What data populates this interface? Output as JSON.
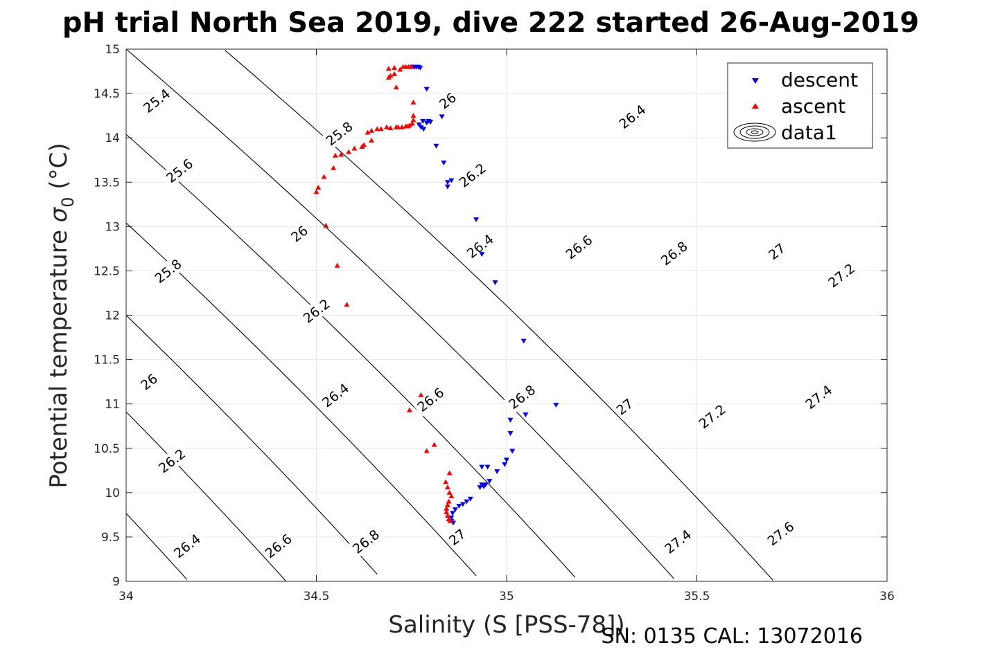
{
  "chart_data": {
    "type": "scatter",
    "title": "pH trial North Sea 2019, dive 222 started 26-Aug-2019",
    "xlabel": "Salinity (S [PSS-78])",
    "ylabel_main": "Potential temperature ",
    "ylabel_sigma": "σ",
    "ylabel_sub": "0",
    "ylabel_unit": " (°C)",
    "xlim": [
      34,
      36
    ],
    "ylim": [
      9,
      15
    ],
    "xticks": [
      "34",
      "34.5",
      "35",
      "35.5",
      "36"
    ],
    "yticks": [
      "9",
      "9.5",
      "10",
      "10.5",
      "11",
      "11.5",
      "12",
      "12.5",
      "13",
      "13.5",
      "14",
      "14.5",
      "15"
    ],
    "grid": true,
    "legend_position": "top-right",
    "legend": [
      "descent",
      "ascent",
      "data1"
    ],
    "colors": {
      "descent": "#0000ff",
      "ascent": "#ff0000",
      "contour": "#000000"
    },
    "contours": {
      "levels": [
        "25.4",
        "25.6",
        "25.8",
        "26",
        "26.2",
        "26.4",
        "26.6",
        "26.8",
        "27",
        "27.2",
        "27.4",
        "27.6"
      ],
      "labels": [
        {
          "text": "25.4",
          "x": 34.08,
          "y": 14.42
        },
        {
          "text": "25.6",
          "x": 34.14,
          "y": 13.63
        },
        {
          "text": "25.8",
          "x": 34.11,
          "y": 12.5
        },
        {
          "text": "26",
          "x": 34.06,
          "y": 11.25
        },
        {
          "text": "26.2",
          "x": 34.12,
          "y": 10.36
        },
        {
          "text": "26.4",
          "x": 34.16,
          "y": 9.4
        },
        {
          "text": "25.8",
          "x": 34.56,
          "y": 14.05
        },
        {
          "text": "26",
          "x": 34.455,
          "y": 12.92
        },
        {
          "text": "26.2",
          "x": 34.5,
          "y": 12.05
        },
        {
          "text": "26.4",
          "x": 34.55,
          "y": 11.1
        },
        {
          "text": "26.6",
          "x": 34.4,
          "y": 9.4
        },
        {
          "text": "26",
          "x": 34.845,
          "y": 14.42
        },
        {
          "text": "26.2",
          "x": 34.91,
          "y": 13.58
        },
        {
          "text": "26.4",
          "x": 34.93,
          "y": 12.78
        },
        {
          "text": "26.6",
          "x": 34.8,
          "y": 11.05
        },
        {
          "text": "26.8",
          "x": 34.63,
          "y": 9.45
        },
        {
          "text": "26.4",
          "x": 35.33,
          "y": 14.24
        },
        {
          "text": "26.6",
          "x": 35.19,
          "y": 12.77
        },
        {
          "text": "26.8",
          "x": 35.04,
          "y": 11.08
        },
        {
          "text": "27",
          "x": 34.87,
          "y": 9.5
        },
        {
          "text": "26.8",
          "x": 35.44,
          "y": 12.7
        },
        {
          "text": "27",
          "x": 35.31,
          "y": 10.97
        },
        {
          "text": "27",
          "x": 35.71,
          "y": 12.72
        },
        {
          "text": "27.2",
          "x": 35.54,
          "y": 10.86
        },
        {
          "text": "27.4",
          "x": 35.45,
          "y": 9.45
        },
        {
          "text": "27.2",
          "x": 35.88,
          "y": 12.45
        },
        {
          "text": "27.4",
          "x": 35.82,
          "y": 11.08
        },
        {
          "text": "27.6",
          "x": 35.72,
          "y": 9.54
        }
      ]
    },
    "series": [
      {
        "name": "descent",
        "marker": "triangle-down",
        "points": [
          [
            34.752,
            14.8
          ],
          [
            34.758,
            14.8
          ],
          [
            34.763,
            14.8
          ],
          [
            34.768,
            14.8
          ],
          [
            34.773,
            14.79
          ],
          [
            34.79,
            14.55
          ],
          [
            34.78,
            14.19
          ],
          [
            34.77,
            14.15
          ],
          [
            34.775,
            14.12
          ],
          [
            34.782,
            14.1
          ],
          [
            34.79,
            14.17
          ],
          [
            34.795,
            14.19
          ],
          [
            34.8,
            14.18
          ],
          [
            34.83,
            14.24
          ],
          [
            34.815,
            13.91
          ],
          [
            34.835,
            13.72
          ],
          [
            34.845,
            13.5
          ],
          [
            34.845,
            13.45
          ],
          [
            34.855,
            13.52
          ],
          [
            34.92,
            13.08
          ],
          [
            34.935,
            12.69
          ],
          [
            34.97,
            12.37
          ],
          [
            35.045,
            11.71
          ],
          [
            35.13,
            10.99
          ],
          [
            35.05,
            10.88
          ],
          [
            35.01,
            10.82
          ],
          [
            35.01,
            10.67
          ],
          [
            35.015,
            10.47
          ],
          [
            35.0,
            10.37
          ],
          [
            34.995,
            10.32
          ],
          [
            34.95,
            10.29
          ],
          [
            34.935,
            10.29
          ],
          [
            34.975,
            10.24
          ],
          [
            34.955,
            10.13
          ],
          [
            34.945,
            10.09
          ],
          [
            34.935,
            10.09
          ],
          [
            34.93,
            10.06
          ],
          [
            34.94,
            10.07
          ],
          [
            34.905,
            9.93
          ],
          [
            34.895,
            9.9
          ],
          [
            34.885,
            9.87
          ],
          [
            34.875,
            9.85
          ],
          [
            34.865,
            9.81
          ],
          [
            34.858,
            9.77
          ],
          [
            34.855,
            9.72
          ],
          [
            34.855,
            9.68
          ],
          [
            34.86,
            9.66
          ]
        ]
      },
      {
        "name": "ascent",
        "marker": "triangle-up",
        "points": [
          [
            34.728,
            14.8
          ],
          [
            34.735,
            14.8
          ],
          [
            34.742,
            14.8
          ],
          [
            34.75,
            14.8
          ],
          [
            34.72,
            14.77
          ],
          [
            34.705,
            14.79
          ],
          [
            34.69,
            14.78
          ],
          [
            34.705,
            14.72
          ],
          [
            34.695,
            14.7
          ],
          [
            34.69,
            14.68
          ],
          [
            34.71,
            14.57
          ],
          [
            34.755,
            14.4
          ],
          [
            34.755,
            14.25
          ],
          [
            34.755,
            14.2
          ],
          [
            34.752,
            14.16
          ],
          [
            34.745,
            14.14
          ],
          [
            34.74,
            14.13
          ],
          [
            34.735,
            14.13
          ],
          [
            34.725,
            14.12
          ],
          [
            34.715,
            14.12
          ],
          [
            34.71,
            14.12
          ],
          [
            34.695,
            14.11
          ],
          [
            34.685,
            14.12
          ],
          [
            34.67,
            14.1
          ],
          [
            34.66,
            14.1
          ],
          [
            34.645,
            14.08
          ],
          [
            34.635,
            14.06
          ],
          [
            34.645,
            13.97
          ],
          [
            34.625,
            13.92
          ],
          [
            34.62,
            13.9
          ],
          [
            34.6,
            13.88
          ],
          [
            34.585,
            13.84
          ],
          [
            34.565,
            13.81
          ],
          [
            34.55,
            13.8
          ],
          [
            34.545,
            13.66
          ],
          [
            34.52,
            13.56
          ],
          [
            34.505,
            13.44
          ],
          [
            34.5,
            13.39
          ],
          [
            34.525,
            13.01
          ],
          [
            34.555,
            12.56
          ],
          [
            34.58,
            12.12
          ],
          [
            34.775,
            11.1
          ],
          [
            34.745,
            10.93
          ],
          [
            34.81,
            10.54
          ],
          [
            34.79,
            10.47
          ],
          [
            34.85,
            10.22
          ],
          [
            34.84,
            10.12
          ],
          [
            34.845,
            10.06
          ],
          [
            34.85,
            10.0
          ],
          [
            34.855,
            9.96
          ],
          [
            34.848,
            9.9
          ],
          [
            34.845,
            9.86
          ],
          [
            34.842,
            9.82
          ],
          [
            34.842,
            9.78
          ],
          [
            34.845,
            9.74
          ],
          [
            34.848,
            9.7
          ],
          [
            34.852,
            9.68
          ]
        ]
      }
    ]
  }
}
